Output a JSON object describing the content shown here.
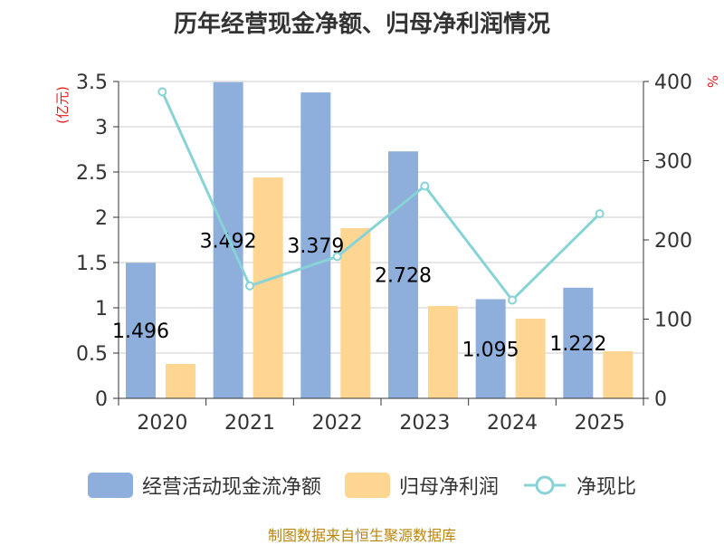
{
  "chart_data": {
    "type": "bar",
    "title": "历年经营现金净额、归母净利润情况",
    "categories": [
      "2020",
      "2021",
      "2022",
      "2023",
      "2024",
      "2025"
    ],
    "series": [
      {
        "name": "经营活动现金流净额",
        "type": "bar",
        "axis": "left",
        "color": "#8eaedc",
        "values": [
          1.496,
          3.492,
          3.379,
          2.728,
          1.095,
          1.222
        ],
        "labels": [
          "1.496",
          "3.492",
          "3.379",
          "2.728",
          "1.095",
          "1.222"
        ]
      },
      {
        "name": "归母净利润",
        "type": "bar",
        "axis": "left",
        "color": "#ffd592",
        "values": [
          0.38,
          2.44,
          1.88,
          1.02,
          0.88,
          0.52
        ]
      },
      {
        "name": "净现比",
        "type": "line",
        "axis": "right",
        "color": "#87d3d6",
        "values": [
          387,
          142,
          179,
          268,
          124,
          233
        ]
      }
    ],
    "y_left": {
      "label": "(亿元)",
      "min": 0,
      "max": 3.5,
      "ticks": [
        "0",
        "0.5",
        "1",
        "1.5",
        "2",
        "2.5",
        "3",
        "3.5"
      ]
    },
    "y_right": {
      "label": "%",
      "min": 0,
      "max": 400,
      "ticks": [
        "0",
        "100",
        "200",
        "300",
        "400"
      ]
    },
    "grid": true,
    "legend_position": "bottom"
  },
  "source": "制图数据来自恒生聚源数据库"
}
